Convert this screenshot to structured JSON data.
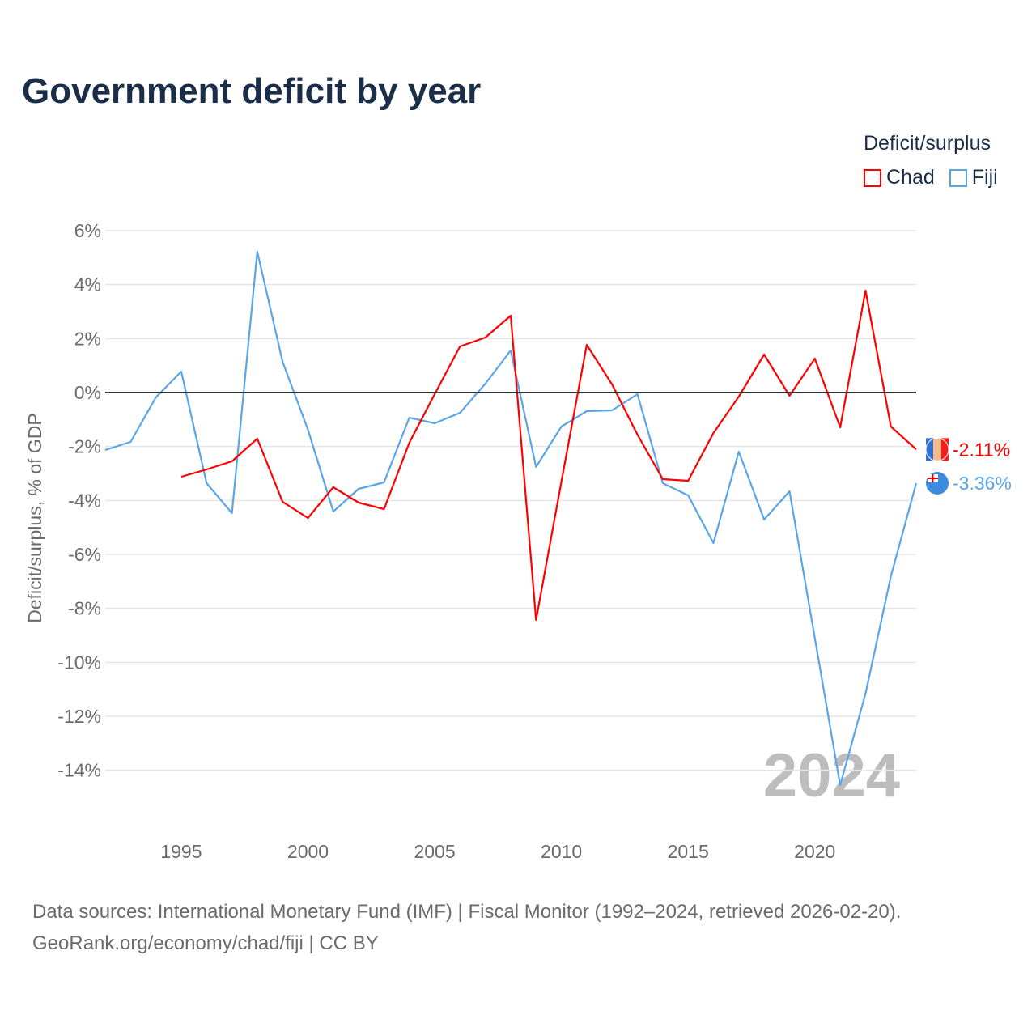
{
  "title": "Government deficit by year",
  "legend": {
    "title": "Deficit/surplus",
    "items": [
      {
        "label": "Chad",
        "color": "#ff0000"
      },
      {
        "label": "Fiji",
        "color": "#5aa5ea"
      }
    ]
  },
  "source_line1": "Data sources: International Monetary Fund (IMF) | Fiscal Monitor (1992–2024, retrieved 2026-02-20).",
  "source_line2": "GeoRank.org/economy/chad/fiji | CC BY",
  "chart_data": {
    "type": "line",
    "title": "Government deficit by year",
    "xlabel": "",
    "ylabel": "Deficit/surplus, % of GDP",
    "xlim": [
      1992,
      2024
    ],
    "ylim": [
      -16,
      6
    ],
    "yticks": [
      6,
      4,
      2,
      0,
      -2,
      -4,
      -6,
      -8,
      -10,
      -12,
      -14
    ],
    "ytick_labels": [
      "6%",
      "4%",
      "2%",
      "0%",
      "-2%",
      "-4%",
      "-6%",
      "-8%",
      "-10%",
      "-12%",
      "-14%"
    ],
    "xticks": [
      1995,
      2000,
      2005,
      2010,
      2015,
      2020
    ],
    "xtick_labels": [
      "1995",
      "2000",
      "2005",
      "2010",
      "2015",
      "2020"
    ],
    "watermark_year": "2024",
    "grid": true,
    "legend_position": "top-right",
    "series": [
      {
        "name": "Chad",
        "color": "#ff0000",
        "end_label": "-2.11%",
        "x": [
          1995,
          1996,
          1997,
          1998,
          1999,
          2000,
          2001,
          2002,
          2003,
          2004,
          2005,
          2006,
          2007,
          2008,
          2009,
          2010,
          2011,
          2012,
          2013,
          2014,
          2015,
          2016,
          2017,
          2018,
          2019,
          2020,
          2021,
          2022,
          2023,
          2024
        ],
        "values": [
          -3.12,
          -2.85,
          -2.55,
          -1.71,
          -4.05,
          -4.65,
          -3.51,
          -4.08,
          -4.32,
          -1.86,
          -0.06,
          1.71,
          2.04,
          2.85,
          -8.43,
          -3.3,
          1.77,
          0.3,
          -1.56,
          -3.21,
          -3.27,
          -1.5,
          -0.15,
          1.41,
          -0.12,
          1.26,
          -1.29,
          3.78,
          -1.26,
          -2.11
        ]
      },
      {
        "name": "Fiji",
        "color": "#5aa5ea",
        "end_label": "-3.36%",
        "x": [
          1992,
          1993,
          1994,
          1995,
          1996,
          1997,
          1998,
          1999,
          2000,
          2001,
          2002,
          2003,
          2004,
          2005,
          2006,
          2007,
          2008,
          2009,
          2010,
          2011,
          2012,
          2013,
          2014,
          2015,
          2016,
          2017,
          2018,
          2019,
          2020,
          2021,
          2022,
          2023,
          2024
        ],
        "values": [
          -2.13,
          -1.83,
          -0.18,
          0.78,
          -3.36,
          -4.47,
          5.22,
          1.14,
          -1.38,
          -4.41,
          -3.57,
          -3.33,
          -0.93,
          -1.14,
          -0.75,
          0.33,
          1.56,
          -2.76,
          -1.26,
          -0.69,
          -0.66,
          -0.06,
          -3.36,
          -3.81,
          -5.58,
          -2.19,
          -4.71,
          -3.66,
          -9.1,
          -14.55,
          -11.16,
          -6.81,
          -3.36
        ]
      }
    ]
  }
}
